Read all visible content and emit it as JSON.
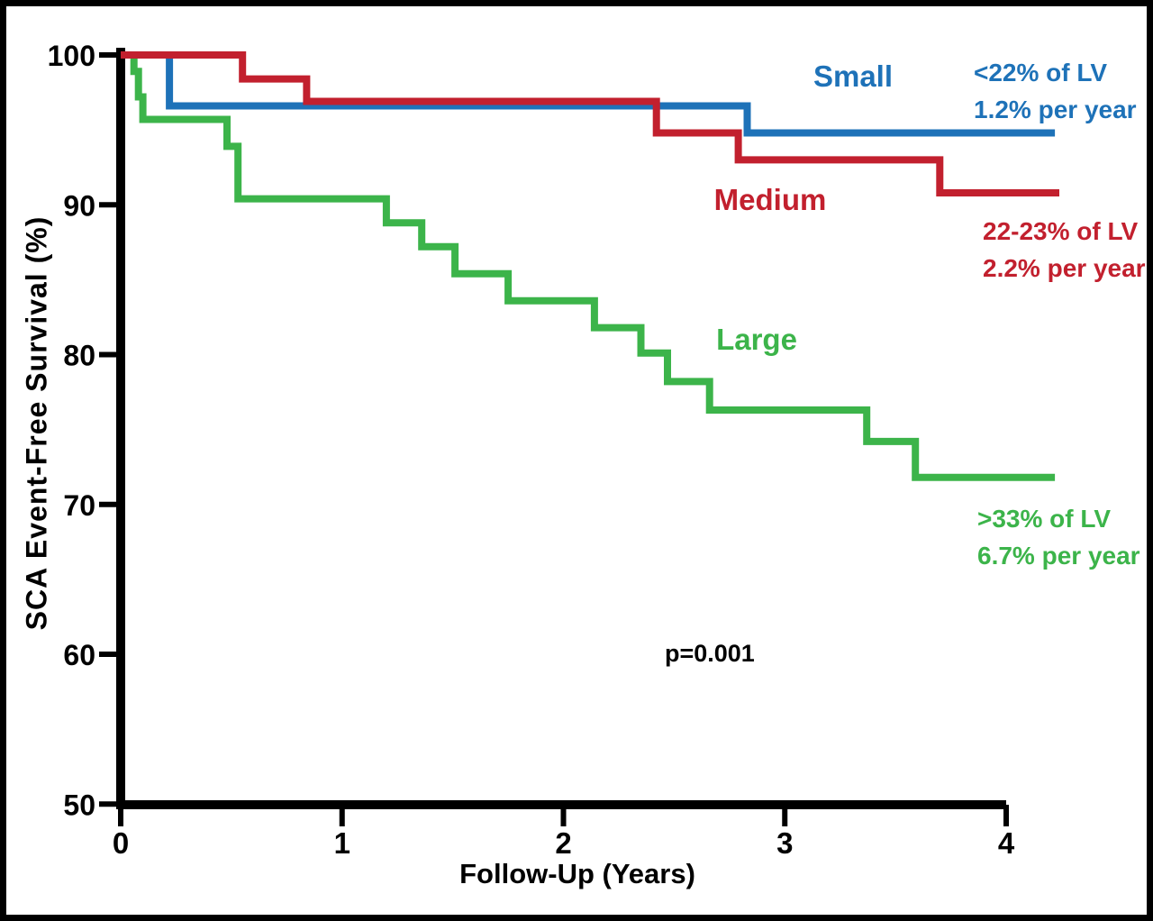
{
  "figure": {
    "border_color": "#000000",
    "background": "#ffffff"
  },
  "chart_data": {
    "type": "line",
    "subtype": "kaplan-meier-step",
    "title": "",
    "xlabel": "Follow-Up (Years)",
    "ylabel": "SCA Event-Free Survival (%)",
    "xlim": [
      0,
      4.25
    ],
    "ylim": [
      50,
      100
    ],
    "x_ticks": [
      0,
      1,
      2,
      3,
      4
    ],
    "y_ticks": [
      100,
      90,
      80,
      70,
      60,
      50
    ],
    "grid": false,
    "legend_position": "inline-labels",
    "annotation": "p=0.001",
    "axis_color": "#000000",
    "series": [
      {
        "name": "Small",
        "label": "Small",
        "color": "#1E72B8",
        "ann_line1": "<22% of LV",
        "ann_line2": "1.2% per year",
        "x_end": 4.22,
        "points": [
          [
            0,
            100
          ],
          [
            0.22,
            96.6
          ],
          [
            2.83,
            94.8
          ]
        ]
      },
      {
        "name": "Medium",
        "label": "Medium",
        "color": "#C2202E",
        "ann_line1": "22-23% of LV",
        "ann_line2": "2.2% per year",
        "x_end": 4.24,
        "points": [
          [
            0,
            100
          ],
          [
            0.55,
            98.4
          ],
          [
            0.84,
            96.9
          ],
          [
            2.42,
            94.8
          ],
          [
            2.79,
            93.0
          ],
          [
            3.7,
            90.8
          ]
        ]
      },
      {
        "name": "Large",
        "label": "Large",
        "color": "#3CB44A",
        "ann_line1": ">33% of LV",
        "ann_line2": "6.7% per year",
        "x_end": 4.22,
        "points": [
          [
            0,
            100
          ],
          [
            0.06,
            98.9
          ],
          [
            0.08,
            97.2
          ],
          [
            0.1,
            95.7
          ],
          [
            0.48,
            93.9
          ],
          [
            0.53,
            90.4
          ],
          [
            1.2,
            88.8
          ],
          [
            1.36,
            87.2
          ],
          [
            1.51,
            85.4
          ],
          [
            1.75,
            83.6
          ],
          [
            2.14,
            81.8
          ],
          [
            2.35,
            80.1
          ],
          [
            2.47,
            78.2
          ],
          [
            2.66,
            76.3
          ],
          [
            3.37,
            74.2
          ],
          [
            3.59,
            71.8
          ]
        ]
      }
    ]
  }
}
